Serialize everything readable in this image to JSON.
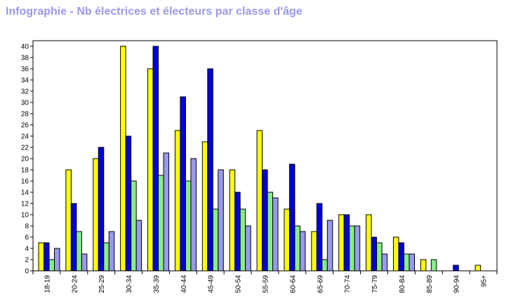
{
  "chart_data": {
    "type": "bar",
    "title": "Infographie - Nb électrices et électeurs par classe d'âge",
    "xlabel": "",
    "ylabel": "",
    "ylim": [
      0,
      41
    ],
    "ytick_step": 2,
    "grid": false,
    "legend": "none",
    "categories": [
      "18-19",
      "20-24",
      "25-29",
      "30-34",
      "35-39",
      "40-44",
      "45-49",
      "50-54",
      "55-59",
      "60-64",
      "65-69",
      "70-74",
      "75-79",
      "80-84",
      "85-89",
      "90-94",
      "95+"
    ],
    "series": [
      {
        "color": "#ffff00",
        "values": [
          5,
          18,
          20,
          40,
          36,
          25,
          23,
          18,
          25,
          11,
          7,
          10,
          10,
          6,
          2,
          0,
          1
        ]
      },
      {
        "color": "#0000dd",
        "values": [
          5,
          12,
          22,
          24,
          40,
          31,
          36,
          14,
          18,
          19,
          12,
          10,
          6,
          5,
          0,
          1,
          0
        ]
      },
      {
        "color": "#88ee88",
        "values": [
          2,
          7,
          5,
          16,
          17,
          16,
          11,
          11,
          14,
          8,
          2,
          8,
          5,
          3,
          2,
          0,
          0
        ]
      },
      {
        "color": "#9999ee",
        "values": [
          4,
          3,
          7,
          9,
          21,
          20,
          18,
          8,
          13,
          7,
          9,
          8,
          3,
          3,
          0,
          0,
          0
        ]
      }
    ]
  }
}
